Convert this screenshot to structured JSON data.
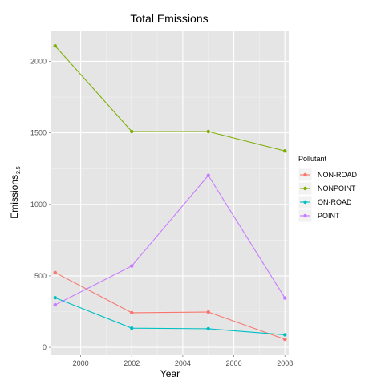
{
  "chart_data": {
    "type": "line",
    "title": "Total Emissions",
    "xlabel": "Year",
    "ylabel": "Emissions",
    "ylabel_subscript": "2.5",
    "x": [
      1999,
      2002,
      2005,
      2008
    ],
    "xlim": [
      1998.85,
      2008.15
    ],
    "ylim": [
      -50,
      2210
    ],
    "x_ticks": [
      2000,
      2002,
      2004,
      2006,
      2008
    ],
    "y_ticks": [
      0,
      500,
      1000,
      1500,
      2000
    ],
    "x_tick_labels": [
      "2000",
      "2002",
      "2004",
      "2006",
      "2008"
    ],
    "y_tick_labels": [
      "0",
      "500",
      "1000",
      "1500",
      "2000"
    ],
    "grid": true,
    "legend_placement": "right",
    "legend_title": "Pollutant",
    "series": [
      {
        "name": "NON-ROAD",
        "color": "#f8766d",
        "values": [
          523,
          242,
          247,
          56
        ]
      },
      {
        "name": "NONPOINT",
        "color": "#7cae00",
        "values": [
          2108,
          1509,
          1509,
          1373
        ]
      },
      {
        "name": "ON-ROAD",
        "color": "#00bfc4",
        "values": [
          347,
          134,
          130,
          88
        ]
      },
      {
        "name": "POINT",
        "color": "#c77cff",
        "values": [
          297,
          569,
          1202,
          345
        ]
      }
    ]
  }
}
